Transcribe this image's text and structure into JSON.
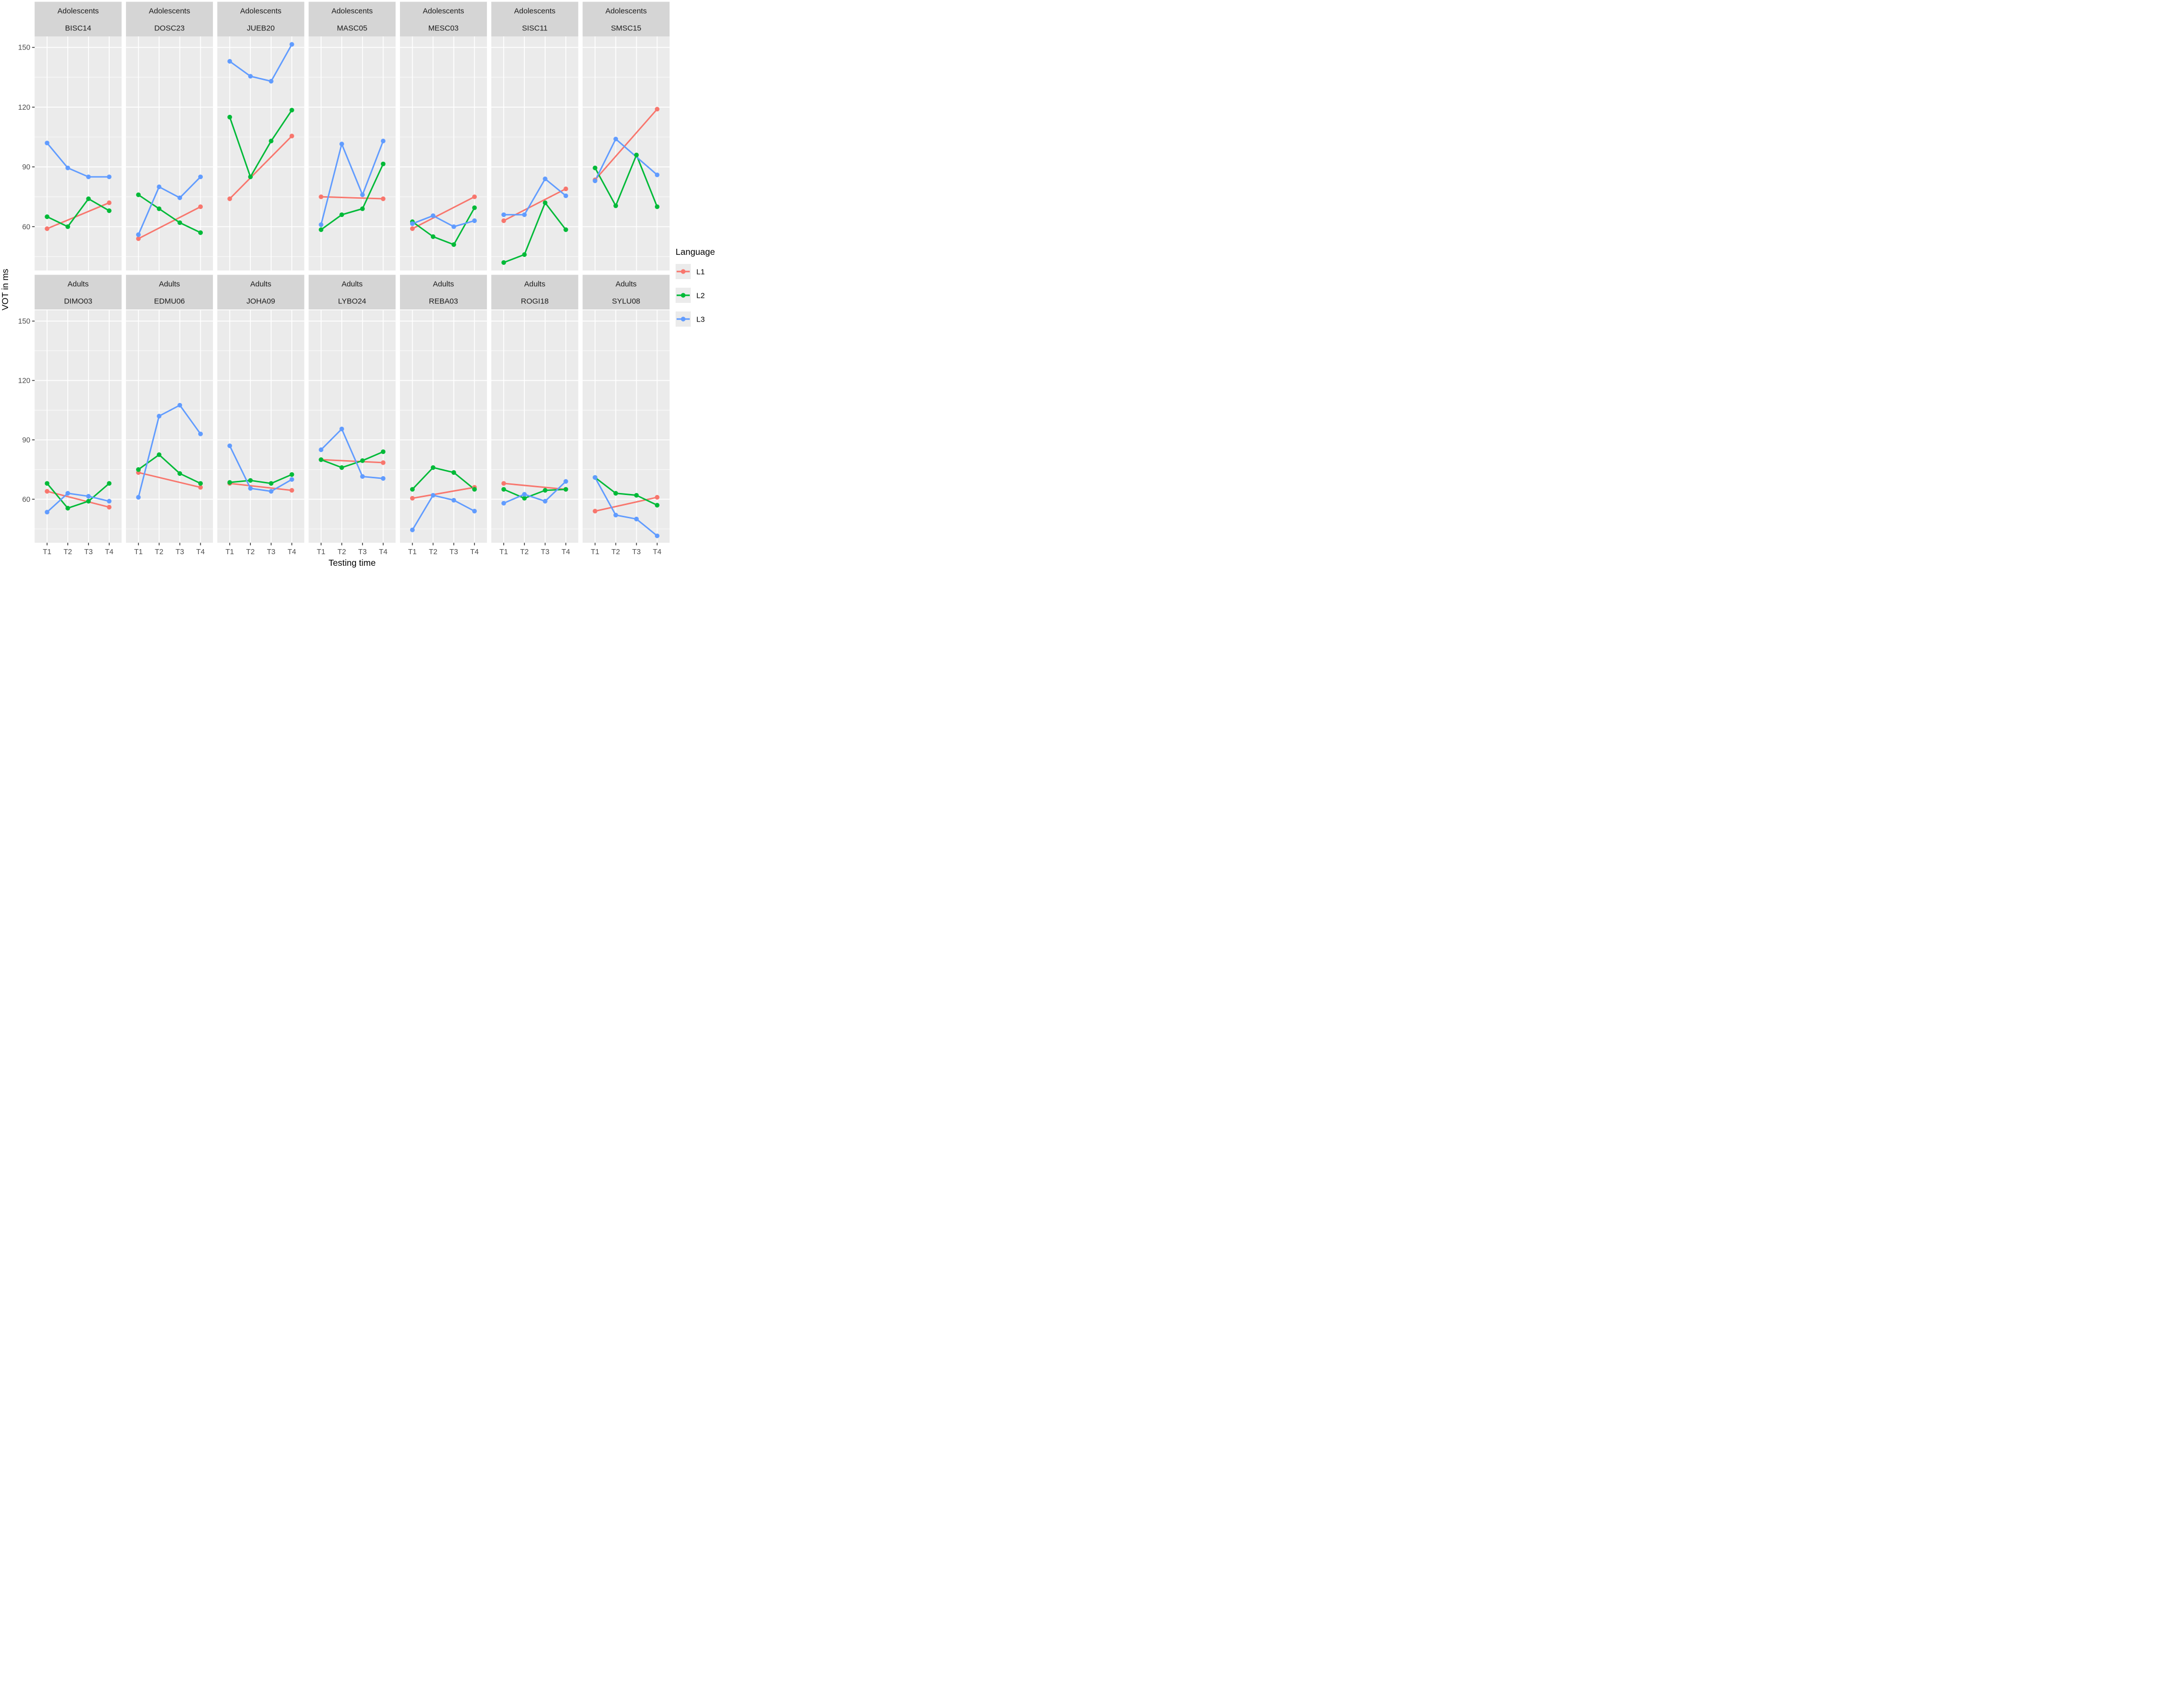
{
  "chart_data": {
    "type": "line",
    "title": "",
    "xlabel": "Testing time",
    "ylabel": "VOT in ms",
    "x_categories": [
      "T1",
      "T2",
      "T3",
      "T4"
    ],
    "y_ticks_major": [
      60,
      90,
      120,
      150
    ],
    "y_ticks_minor": [
      45,
      75,
      105,
      135
    ],
    "ylim": [
      38,
      155.5
    ],
    "grid": "on",
    "colors": {
      "L1": "#F8766D",
      "L2": "#00BA38",
      "L3": "#619CFF",
      "panel_bg": "#EBEBEB",
      "strip_bg": "#D5D5D5",
      "grid": "#FFFFFF",
      "tick_text": "#4D4D4D",
      "tick_mark": "#333333",
      "text": "#000000"
    },
    "legend": {
      "title": "Language",
      "position": "right",
      "entries": [
        {
          "label": "L1",
          "color": "#F8766D"
        },
        {
          "label": "L2",
          "color": "#00BA38"
        },
        {
          "label": "L3",
          "color": "#619CFF"
        }
      ]
    },
    "facet_rows": [
      {
        "group": "Adolescents",
        "panels": [
          {
            "id": "BISC14",
            "series": [
              {
                "name": "L1",
                "values": [
                  59,
                  null,
                  null,
                  72
                ]
              },
              {
                "name": "L2",
                "values": [
                  65,
                  60,
                  74,
                  68
                ]
              },
              {
                "name": "L3",
                "values": [
                  102,
                  89.5,
                  85,
                  85
                ]
              }
            ]
          },
          {
            "id": "DOSC23",
            "series": [
              {
                "name": "L1",
                "values": [
                  54,
                  null,
                  null,
                  70
                ]
              },
              {
                "name": "L2",
                "values": [
                  76,
                  69,
                  62,
                  57
                ]
              },
              {
                "name": "L3",
                "values": [
                  56,
                  80,
                  74.5,
                  85
                ]
              }
            ]
          },
          {
            "id": "JUEB20",
            "series": [
              {
                "name": "L1",
                "values": [
                  74,
                  null,
                  null,
                  105.5
                ]
              },
              {
                "name": "L2",
                "values": [
                  115,
                  85,
                  103,
                  118.5
                ]
              },
              {
                "name": "L3",
                "values": [
                  143,
                  135.5,
                  133,
                  151.5
                ]
              }
            ]
          },
          {
            "id": "MASC05",
            "series": [
              {
                "name": "L1",
                "values": [
                  75,
                  null,
                  null,
                  74
                ]
              },
              {
                "name": "L2",
                "values": [
                  58.5,
                  66,
                  69,
                  91.5
                ]
              },
              {
                "name": "L3",
                "values": [
                  61,
                  101.5,
                  76,
                  103
                ]
              }
            ]
          },
          {
            "id": "MESC03",
            "series": [
              {
                "name": "L1",
                "values": [
                  59,
                  null,
                  null,
                  75
                ]
              },
              {
                "name": "L2",
                "values": [
                  62.5,
                  55,
                  51,
                  69.5
                ]
              },
              {
                "name": "L3",
                "values": [
                  61.5,
                  65.5,
                  60,
                  63
                ]
              }
            ]
          },
          {
            "id": "SISC11",
            "series": [
              {
                "name": "L1",
                "values": [
                  63,
                  null,
                  null,
                  79
                ]
              },
              {
                "name": "L2",
                "values": [
                  42,
                  46,
                  72,
                  58.5
                ]
              },
              {
                "name": "L3",
                "values": [
                  66,
                  66,
                  84,
                  75.5
                ]
              }
            ]
          },
          {
            "id": "SMSC15",
            "series": [
              {
                "name": "L1",
                "values": [
                  83.5,
                  null,
                  null,
                  119
                ]
              },
              {
                "name": "L2",
                "values": [
                  89.5,
                  70.5,
                  96,
                  70
                ]
              },
              {
                "name": "L3",
                "values": [
                  83,
                  104,
                  null,
                  86
                ]
              }
            ]
          }
        ]
      },
      {
        "group": "Adults",
        "panels": [
          {
            "id": "DIMO03",
            "series": [
              {
                "name": "L1",
                "values": [
                  64,
                  null,
                  null,
                  56
                ]
              },
              {
                "name": "L2",
                "values": [
                  68,
                  55.5,
                  59,
                  68
                ]
              },
              {
                "name": "L3",
                "values": [
                  53.5,
                  63,
                  61.5,
                  59
                ]
              }
            ]
          },
          {
            "id": "EDMU06",
            "series": [
              {
                "name": "L1",
                "values": [
                  73.5,
                  null,
                  null,
                  66
                ]
              },
              {
                "name": "L2",
                "values": [
                  75,
                  82.5,
                  73,
                  68
                ]
              },
              {
                "name": "L3",
                "values": [
                  61,
                  102,
                  107.5,
                  93
                ]
              }
            ]
          },
          {
            "id": "JOHA09",
            "series": [
              {
                "name": "L1",
                "values": [
                  68,
                  null,
                  null,
                  64.5
                ]
              },
              {
                "name": "L2",
                "values": [
                  68.5,
                  69.5,
                  68,
                  72.5
                ]
              },
              {
                "name": "L3",
                "values": [
                  87,
                  65.5,
                  64,
                  70
                ]
              }
            ]
          },
          {
            "id": "LYBO24",
            "series": [
              {
                "name": "L1",
                "values": [
                  80,
                  null,
                  null,
                  78.5
                ]
              },
              {
                "name": "L2",
                "values": [
                  80,
                  76,
                  79.5,
                  84
                ]
              },
              {
                "name": "L3",
                "values": [
                  85,
                  95.5,
                  71.5,
                  70.5
                ]
              }
            ]
          },
          {
            "id": "REBA03",
            "series": [
              {
                "name": "L1",
                "values": [
                  60.5,
                  null,
                  null,
                  66
                ]
              },
              {
                "name": "L2",
                "values": [
                  65,
                  76,
                  73.5,
                  65
                ]
              },
              {
                "name": "L3",
                "values": [
                  44.5,
                  62,
                  59.5,
                  54
                ]
              }
            ]
          },
          {
            "id": "ROGI18",
            "series": [
              {
                "name": "L1",
                "values": [
                  68,
                  null,
                  null,
                  65
                ]
              },
              {
                "name": "L2",
                "values": [
                  65,
                  60.5,
                  64.5,
                  65
                ]
              },
              {
                "name": "L3",
                "values": [
                  58,
                  62.5,
                  59,
                  69
                ]
              }
            ]
          },
          {
            "id": "SYLU08",
            "series": [
              {
                "name": "L1",
                "values": [
                  54,
                  null,
                  null,
                  61
                ]
              },
              {
                "name": "L2",
                "values": [
                  71,
                  63,
                  62,
                  57
                ]
              },
              {
                "name": "L3",
                "values": [
                  71,
                  52,
                  50,
                  41.5
                ]
              }
            ]
          }
        ]
      }
    ]
  }
}
